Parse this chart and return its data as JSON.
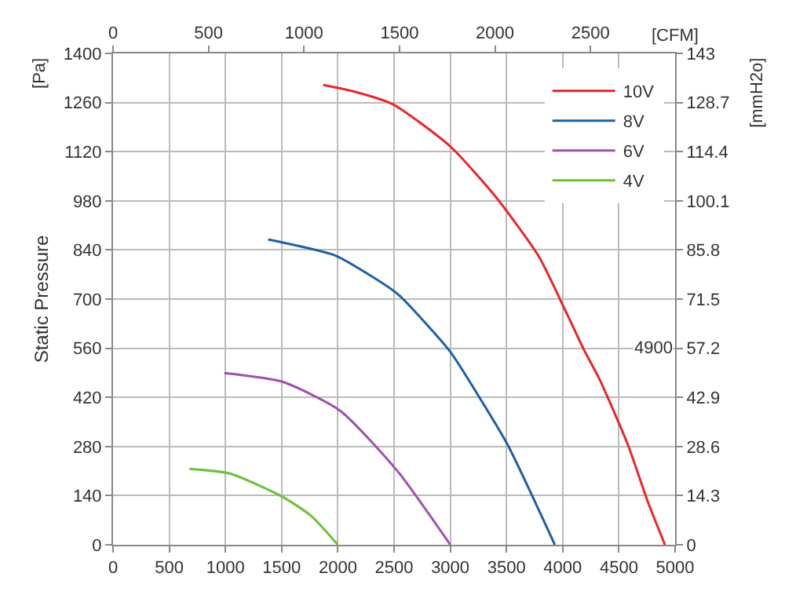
{
  "chart_data": {
    "type": "line",
    "ylabel": "Static Pressure",
    "annotations": [
      "[Pa]",
      "[CFM]",
      "[mmH2o]",
      "4900"
    ],
    "series": [
      {
        "name": "10V",
        "color": "#e8262b",
        "x": [
          1870,
          2160,
          2490,
          3000,
          3420,
          3790,
          4020,
          4190,
          4330,
          4580,
          4760,
          4910
        ],
        "values": [
          1310,
          1290,
          1255,
          1135,
          985,
          820,
          670,
          555,
          470,
          285,
          120,
          0
        ]
      },
      {
        "name": "8V",
        "color": "#1f5fa8",
        "x": [
          1380,
          1970,
          2250,
          2530,
          3000,
          3230,
          3510,
          3930
        ],
        "values": [
          870,
          825,
          775,
          715,
          550,
          435,
          285,
          0
        ]
      },
      {
        "name": "6V",
        "color": "#a050b0",
        "x": [
          990,
          1510,
          2020,
          2530,
          3000
        ],
        "values": [
          489,
          464,
          382,
          210,
          0
        ]
      },
      {
        "name": "4V",
        "color": "#6cbf3c",
        "x": [
          680,
          1040,
          1510,
          1760,
          2000
        ],
        "values": [
          216,
          203,
          136,
          83,
          0
        ]
      }
    ],
    "xlim": [
      0,
      5000
    ],
    "xticks": [
      0,
      500,
      1000,
      1500,
      2000,
      2500,
      3000,
      3500,
      4000,
      4500,
      5000
    ],
    "ylim": [
      0,
      1400
    ],
    "yticks": [
      0,
      140,
      280,
      420,
      560,
      700,
      840,
      980,
      1120,
      1260,
      1400
    ],
    "x2lim": [
      0,
      2943
    ],
    "x2ticks": [
      0,
      500,
      1000,
      1500,
      2000,
      2500
    ],
    "y2lim": [
      0,
      143
    ],
    "y2ticks": [
      0,
      14.3,
      28.6,
      42.9,
      57.2,
      71.5,
      85.8,
      100.1,
      114.4,
      128.7,
      143
    ],
    "grid": true,
    "legend": "top right",
    "marker": "none",
    "line_style": "solid"
  }
}
